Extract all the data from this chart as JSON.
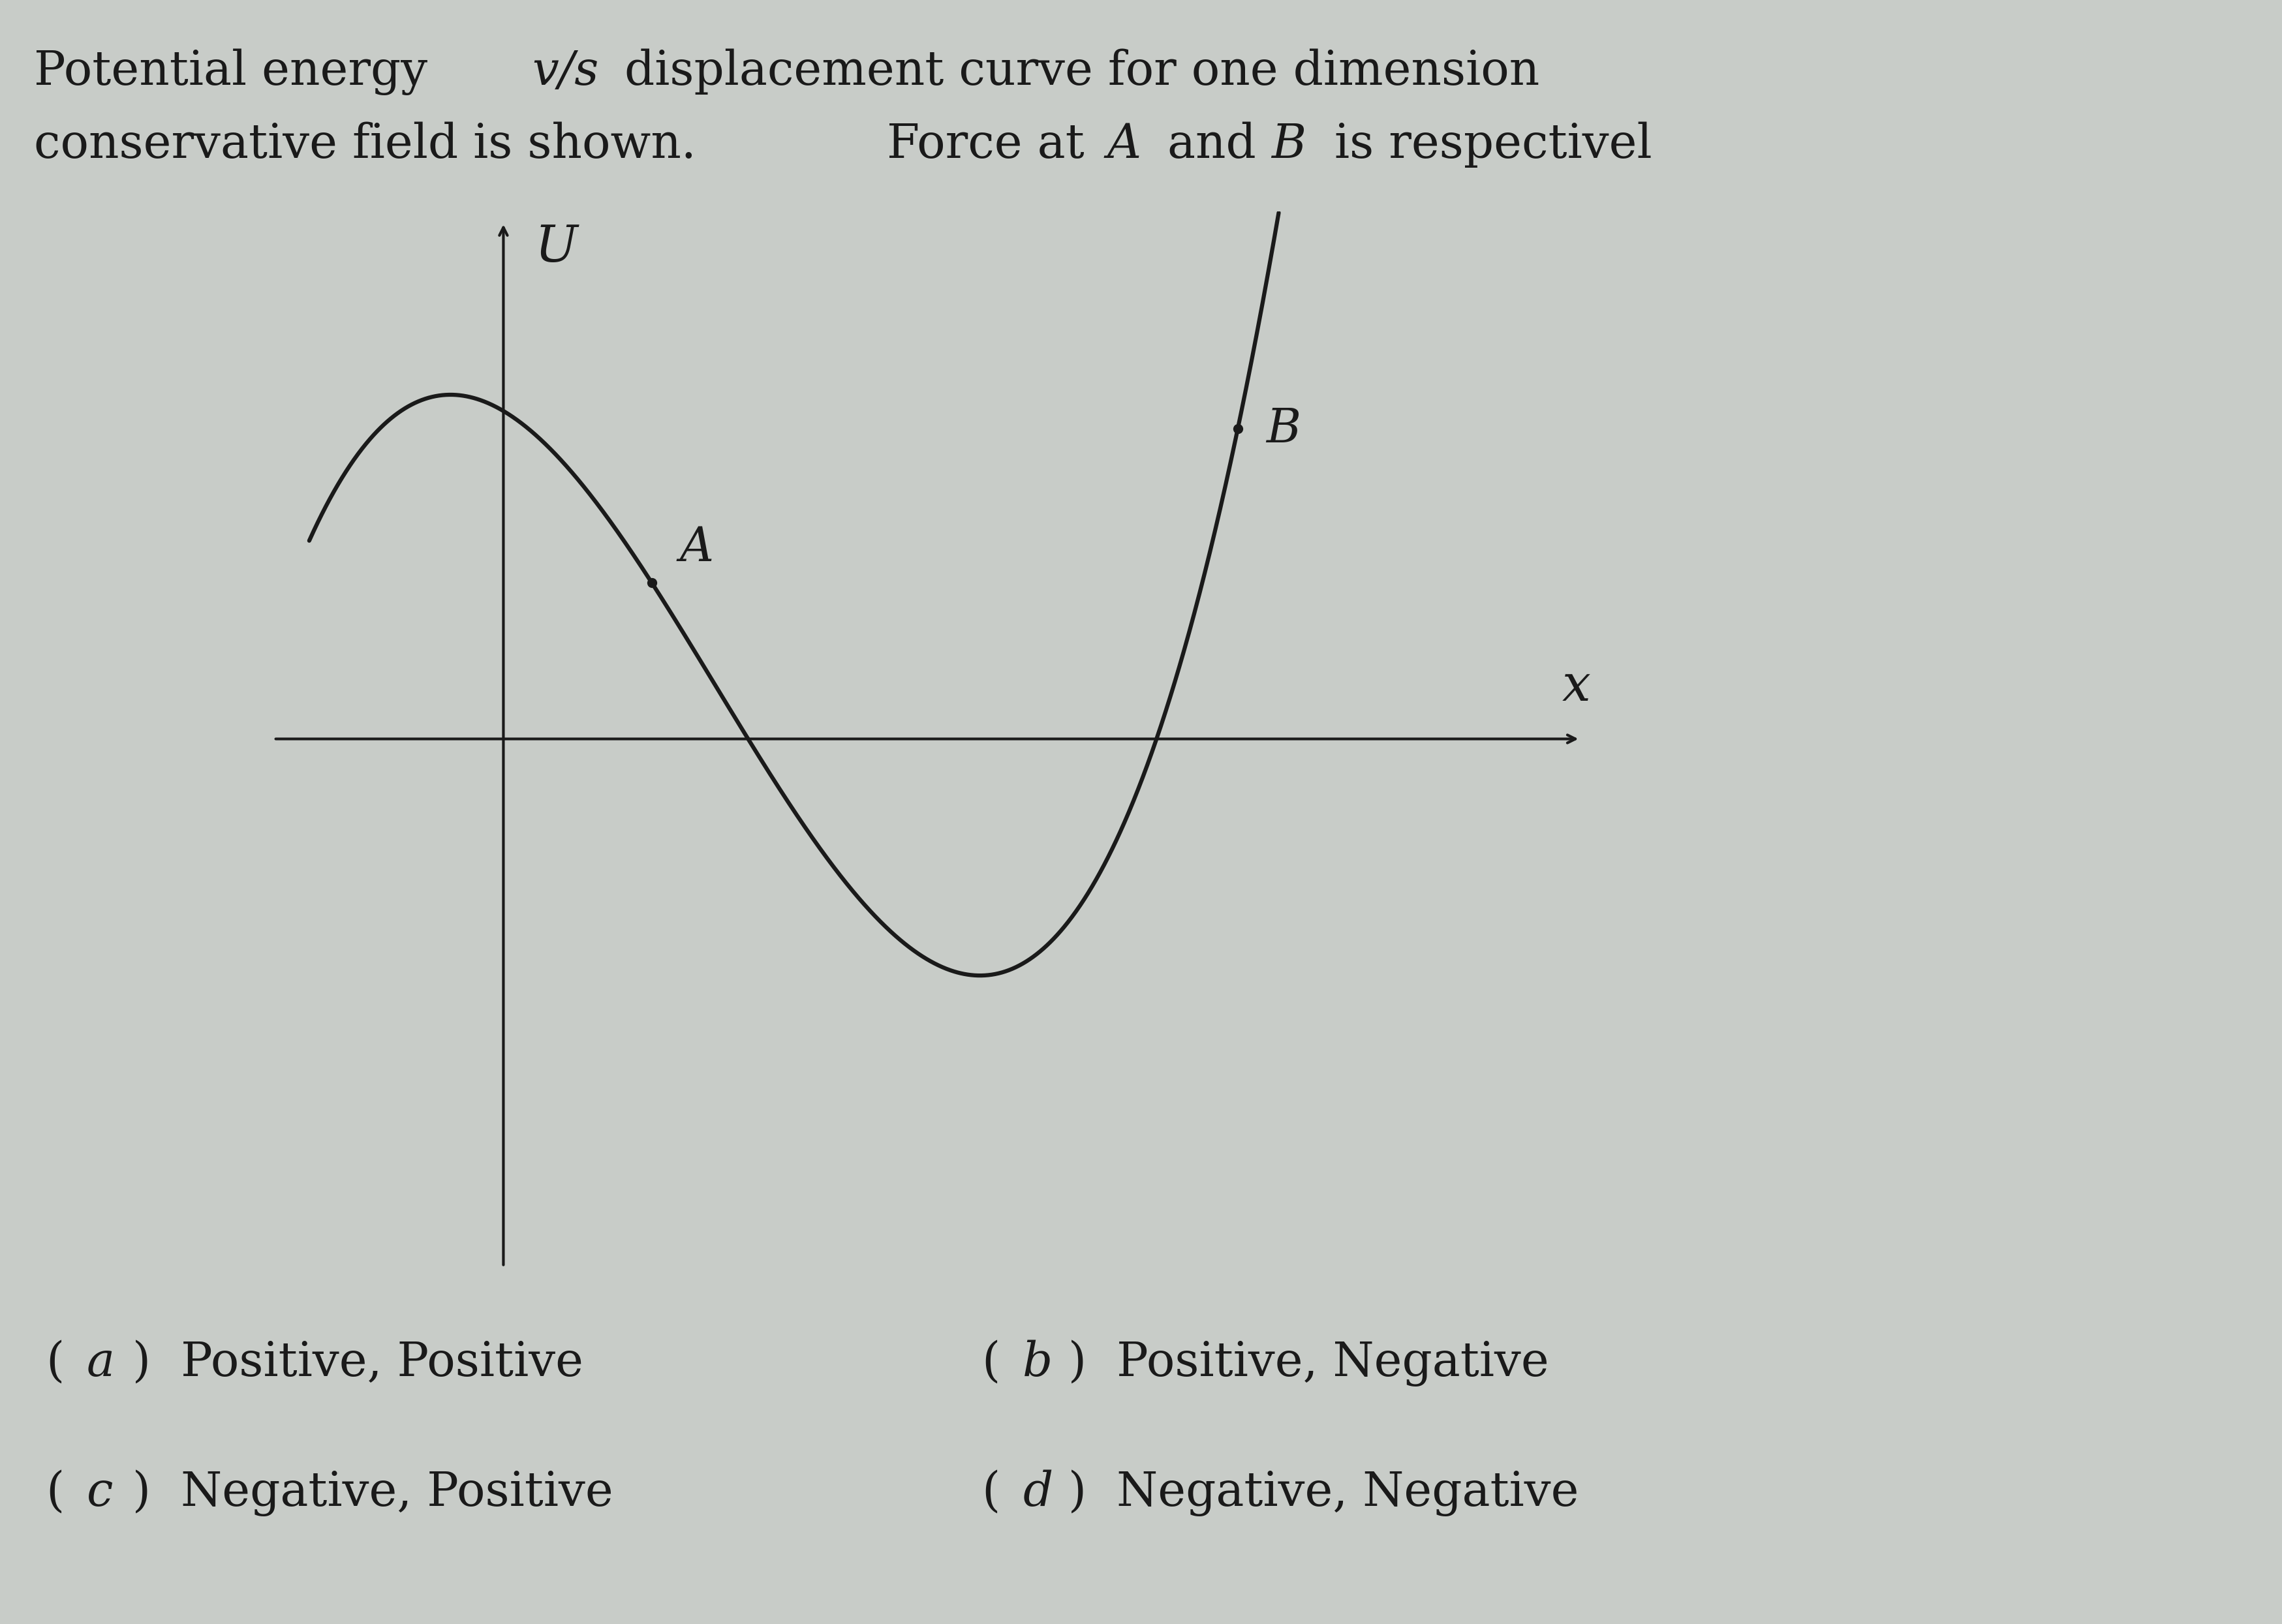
{
  "background_color": "#c8ccc8",
  "curve_color": "#1a1a1a",
  "axis_color": "#1a1a1a",
  "text_color": "#1a1a1a",
  "label_U": "U",
  "label_x": "x",
  "label_A": "A",
  "label_B": "B",
  "title_fontsize": 52,
  "choice_fontsize": 52,
  "axis_label_fontsize": 56,
  "point_label_fontsize": 52,
  "curve_lw": 4.5,
  "axis_lw": 3.0,
  "poly_a": 3.0,
  "poly_b": -7.65,
  "poly_c": 2.7,
  "poly_d": 1.242,
  "x_A": 0.42,
  "x_B": 2.08,
  "xlim_lo": -0.65,
  "xlim_hi": 3.1,
  "ylim_lo": -2.3,
  "ylim_hi": 2.3
}
